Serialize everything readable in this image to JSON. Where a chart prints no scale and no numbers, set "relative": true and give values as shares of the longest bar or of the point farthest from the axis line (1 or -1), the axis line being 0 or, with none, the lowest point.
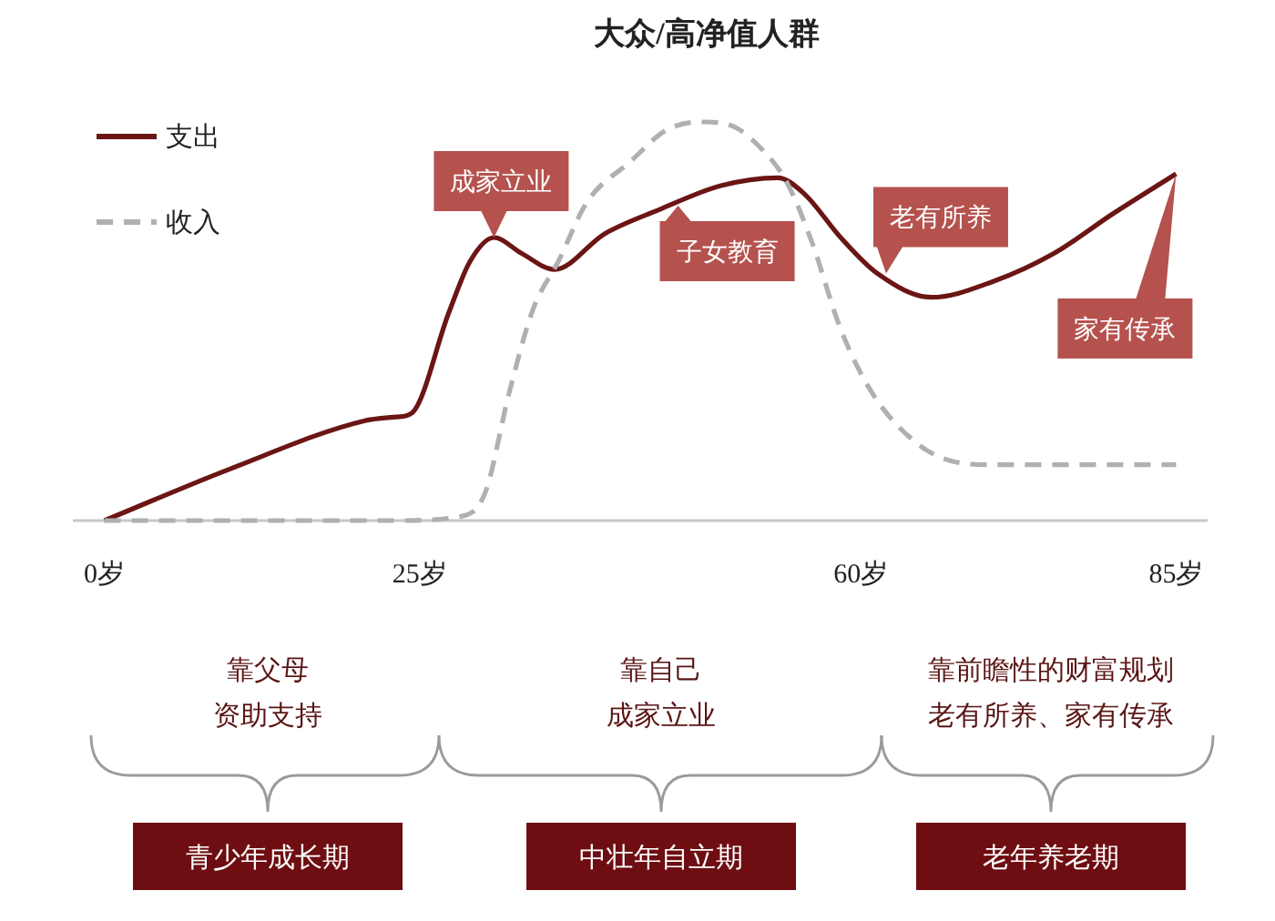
{
  "chart_data": {
    "type": "line",
    "title": "大众/高净值人群",
    "relative": true,
    "xlim": [
      -2.5,
      87.5
    ],
    "xticks": [
      {
        "value": 0,
        "label": "0岁"
      },
      {
        "value": 25,
        "label": "25岁"
      },
      {
        "value": 60,
        "label": "60岁"
      },
      {
        "value": 85,
        "label": "85岁"
      }
    ],
    "tick_labels": "x",
    "legend": "top left",
    "series": [
      {
        "name": "支出",
        "color": "#6b1515",
        "line_style": "solid",
        "x": [
          0,
          10,
          20.6,
          23.2,
          24.4,
          27.3,
          29,
          30.9,
          33.1,
          35.7,
          39.7,
          44,
          48.9,
          53.4,
          55.5,
          58.4,
          61.3,
          65.6,
          70.5,
          75.3,
          80,
          85
        ],
        "values": [
          0,
          0.13,
          0.25,
          0.26,
          0.27,
          0.52,
          0.65,
          0.71,
          0.67,
          0.63,
          0.72,
          0.78,
          0.84,
          0.86,
          0.82,
          0.71,
          0.62,
          0.56,
          0.6,
          0.67,
          0.77,
          0.87
        ]
      },
      {
        "name": "收入",
        "color": "#b0b0b0",
        "line_style": "dashed",
        "x": [
          0,
          23,
          28.2,
          30.2,
          32.1,
          34,
          36,
          38.3,
          41.7,
          44.6,
          47.5,
          49.8,
          52.2,
          54.1,
          56.1,
          58.4,
          60.9,
          64.2,
          67.1,
          70.5,
          85
        ],
        "values": [
          0,
          0,
          0.01,
          0.07,
          0.32,
          0.53,
          0.65,
          0.8,
          0.9,
          0.98,
          1,
          0.99,
          0.93,
          0.85,
          0.7,
          0.48,
          0.32,
          0.2,
          0.15,
          0.14,
          0.14
        ]
      }
    ],
    "annotations": [
      {
        "text": "成家立业",
        "x": 30.9,
        "y": 0.71
      },
      {
        "text": "子女教育",
        "x": 45.5,
        "y": 0.79
      },
      {
        "text": "老有所养",
        "x": 62,
        "y": 0.62
      },
      {
        "text": "家有传承",
        "x": 85,
        "y": 0.87
      },
      "靠父母资助支持",
      "靠自己成家立业",
      "靠前瞻性的财富规划老有所养、家有传承",
      "青少年成长期",
      "中壮年自立期",
      "老年养老期"
    ]
  }
}
